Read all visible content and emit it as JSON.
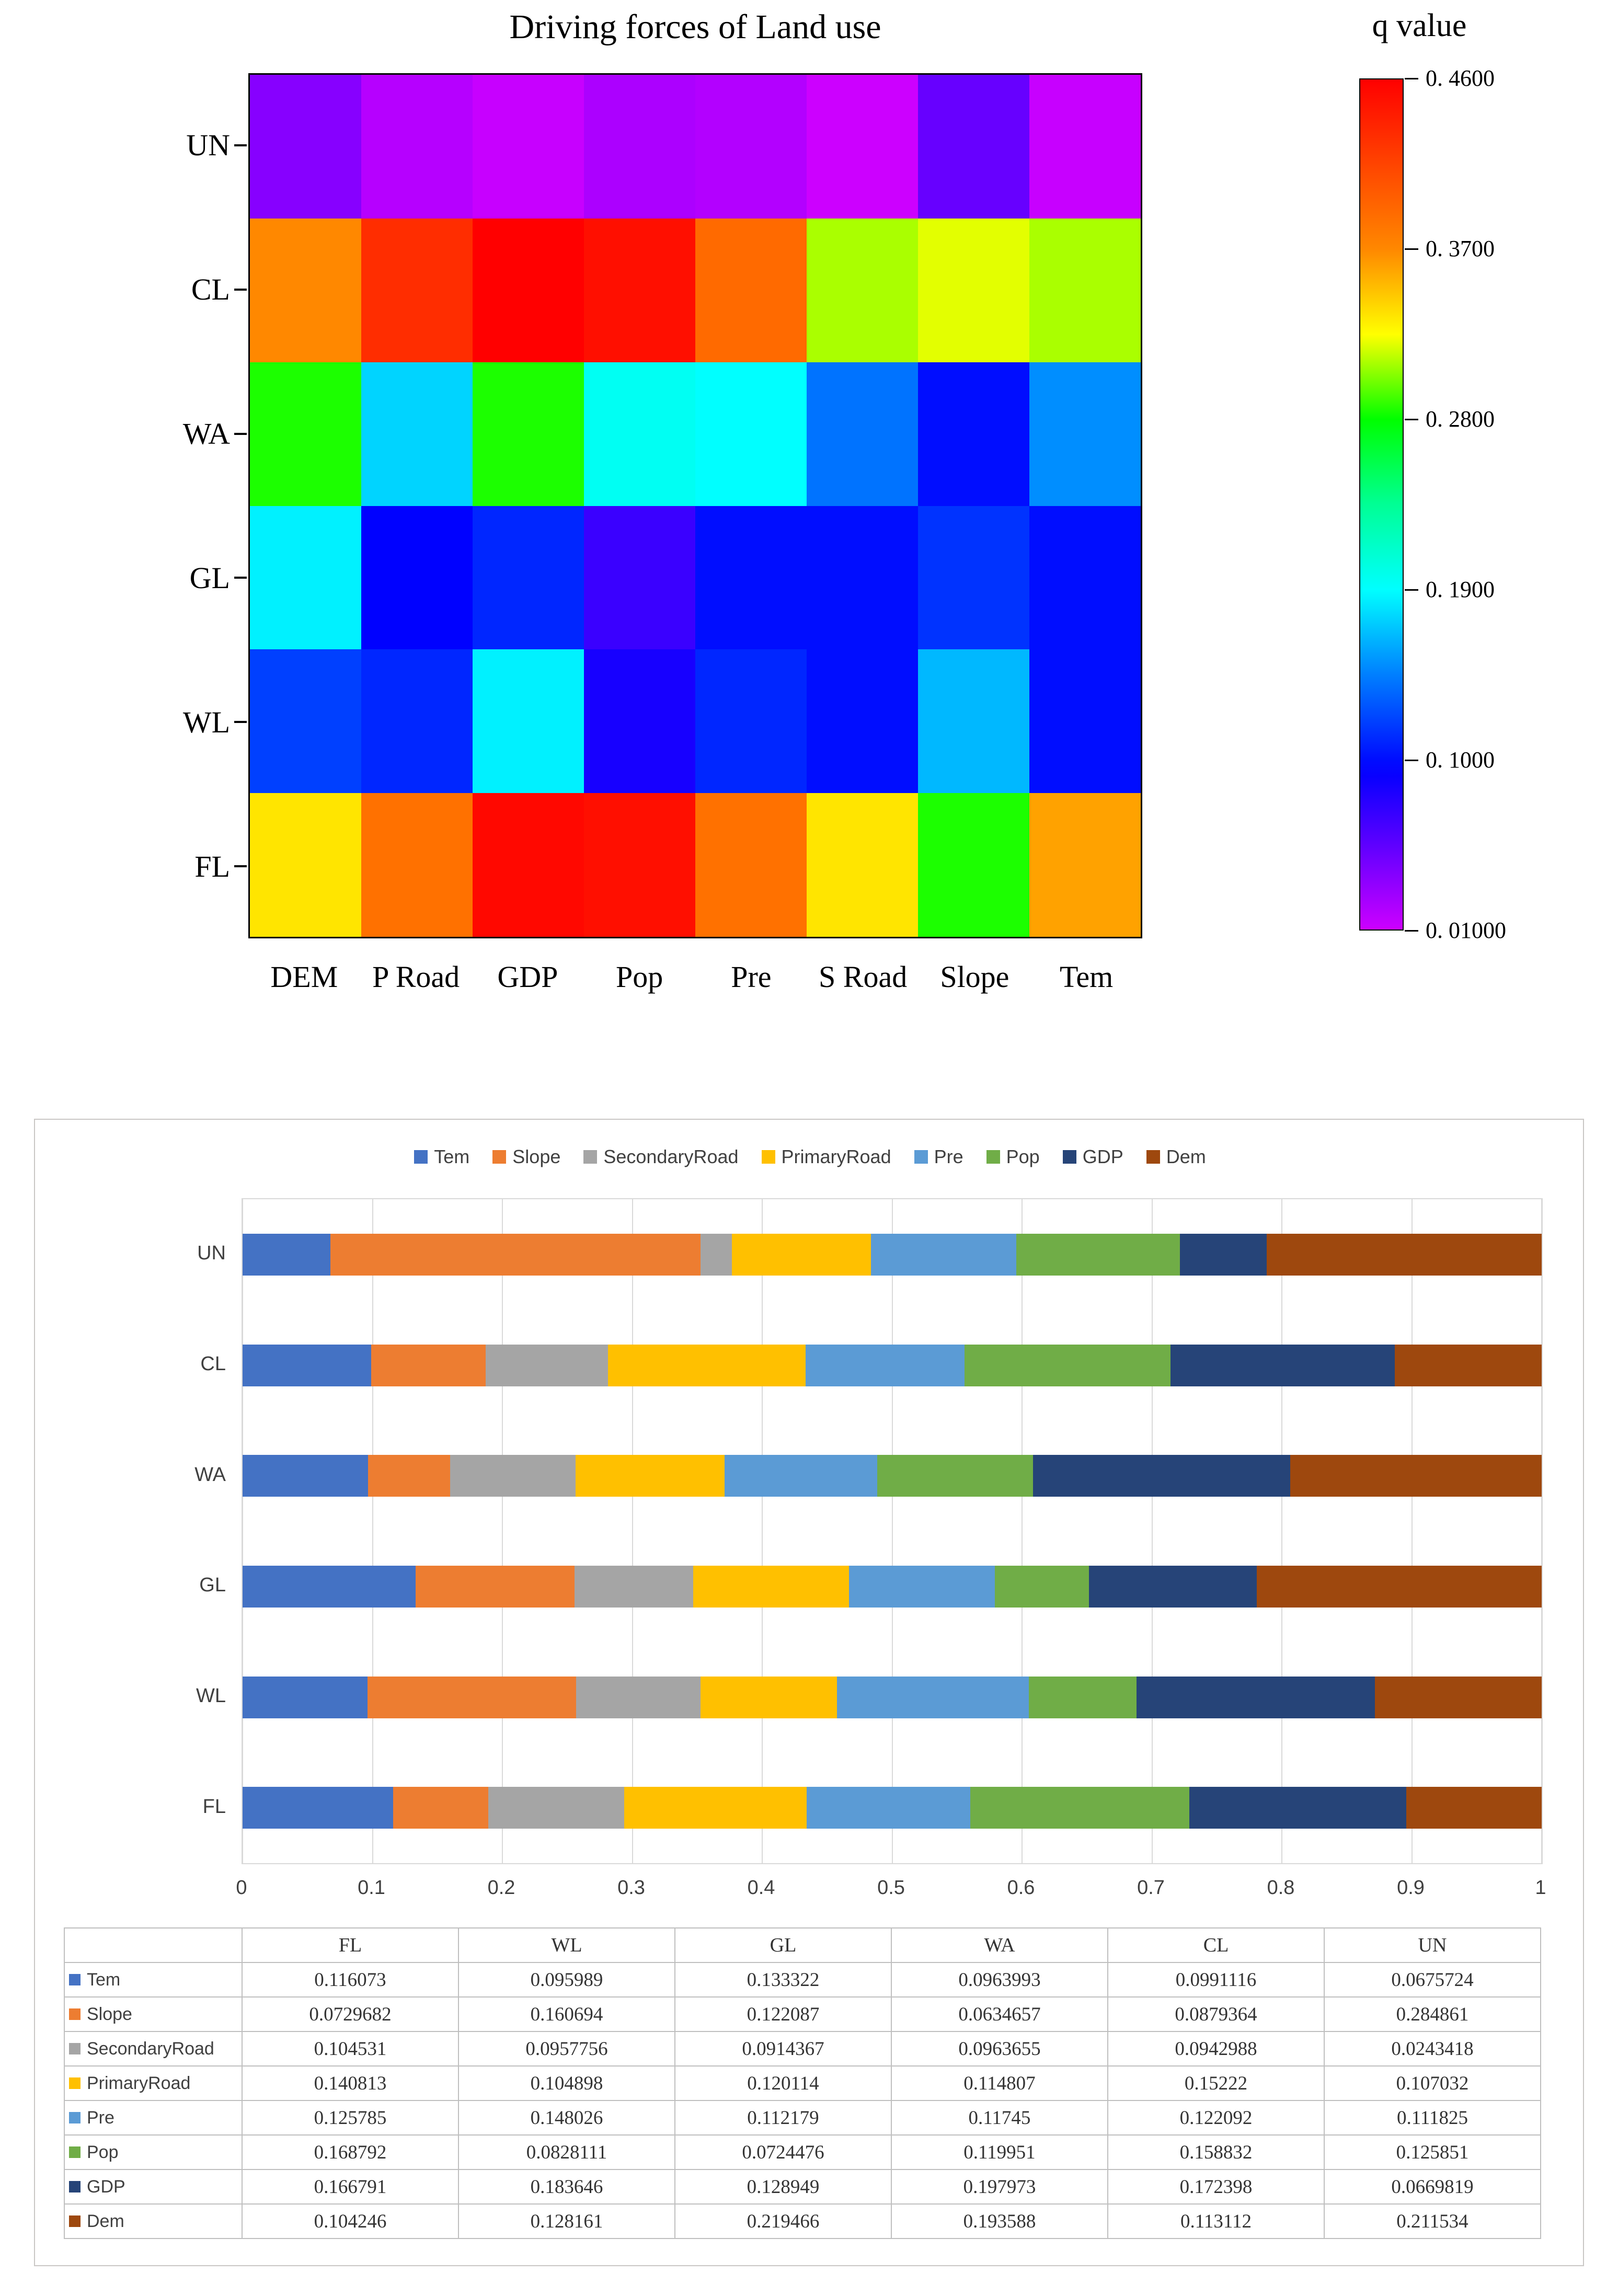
{
  "figure1": {
    "title": "Driving forces of Land use",
    "colorbar_title": "q value"
  },
  "chart_data": [
    {
      "type": "heatmap",
      "title": "Driving forces of Land use",
      "y_categories": [
        "UN",
        "CL",
        "WA",
        "GL",
        "WL",
        "FL"
      ],
      "x_categories": [
        "DEM",
        "P Road",
        "GDP",
        "Pop",
        "Pre",
        "S Road",
        "Slope",
        "Tem"
      ],
      "values": [
        [
          0.038,
          0.019,
          0.012,
          0.023,
          0.02,
          0.006,
          0.051,
          0.012
        ],
        [
          0.37,
          0.43,
          0.46,
          0.45,
          0.39,
          0.31,
          0.32,
          0.31
        ],
        [
          0.285,
          0.175,
          0.285,
          0.195,
          0.19,
          0.14,
          0.1,
          0.15
        ],
        [
          0.185,
          0.095,
          0.11,
          0.07,
          0.1,
          0.1,
          0.115,
          0.1
        ],
        [
          0.12,
          0.11,
          0.185,
          0.085,
          0.11,
          0.1,
          0.165,
          0.1
        ],
        [
          0.335,
          0.385,
          0.455,
          0.45,
          0.385,
          0.335,
          0.285,
          0.36
        ]
      ],
      "colorbar": {
        "title": "q value",
        "min": 0.01,
        "max": 0.46,
        "tick_labels": [
          "0. 4600",
          "0. 3700",
          "0. 2800",
          "0. 1900",
          "0. 1000",
          "0. 01000"
        ],
        "tick_values": [
          0.46,
          0.37,
          0.28,
          0.19,
          0.1,
          0.01
        ]
      }
    },
    {
      "type": "bar",
      "subtype": "stacked-horizontal-normalized",
      "categories": [
        "FL",
        "WL",
        "GL",
        "WA",
        "CL",
        "UN"
      ],
      "bar_order_top_to_bottom": [
        "UN",
        "CL",
        "WA",
        "GL",
        "WL",
        "FL"
      ],
      "xlim": [
        0,
        1
      ],
      "x_ticks": [
        "0",
        "0.1",
        "0.2",
        "0.3",
        "0.4",
        "0.5",
        "0.6",
        "0.7",
        "0.8",
        "0.9",
        "1"
      ],
      "legend_position": "top",
      "grid": true,
      "series": [
        {
          "name": "Tem",
          "color": "#4472C4",
          "values": [
            "0.116073",
            "0.095989",
            "0.133322",
            "0.0963993",
            "0.0991116",
            "0.0675724"
          ]
        },
        {
          "name": "Slope",
          "color": "#ED7D31",
          "values": [
            "0.0729682",
            "0.160694",
            "0.122087",
            "0.0634657",
            "0.0879364",
            "0.284861"
          ]
        },
        {
          "name": "SecondaryRoad",
          "color": "#A5A5A5",
          "values": [
            "0.104531",
            "0.0957756",
            "0.0914367",
            "0.0963655",
            "0.0942988",
            "0.0243418"
          ]
        },
        {
          "name": "PrimaryRoad",
          "color": "#FFC000",
          "values": [
            "0.140813",
            "0.104898",
            "0.120114",
            "0.114807",
            "0.15222",
            "0.107032"
          ]
        },
        {
          "name": "Pre",
          "color": "#5B9BD5",
          "values": [
            "0.125785",
            "0.148026",
            "0.112179",
            "0.11745",
            "0.122092",
            "0.111825"
          ]
        },
        {
          "name": "Pop",
          "color": "#70AD47",
          "values": [
            "0.168792",
            "0.0828111",
            "0.0724476",
            "0.119951",
            "0.158832",
            "0.125851"
          ]
        },
        {
          "name": "GDP",
          "color": "#264478",
          "values": [
            "0.166791",
            "0.183646",
            "0.128949",
            "0.197973",
            "0.172398",
            "0.0669819"
          ]
        },
        {
          "name": "Dem",
          "color": "#9E480E",
          "values": [
            "0.104246",
            "0.128161",
            "0.219466",
            "0.193588",
            "0.113112",
            "0.211534"
          ]
        }
      ],
      "data_table": {
        "col_headers": [
          "FL",
          "WL",
          "GL",
          "WA",
          "CL",
          "UN"
        ]
      }
    }
  ]
}
